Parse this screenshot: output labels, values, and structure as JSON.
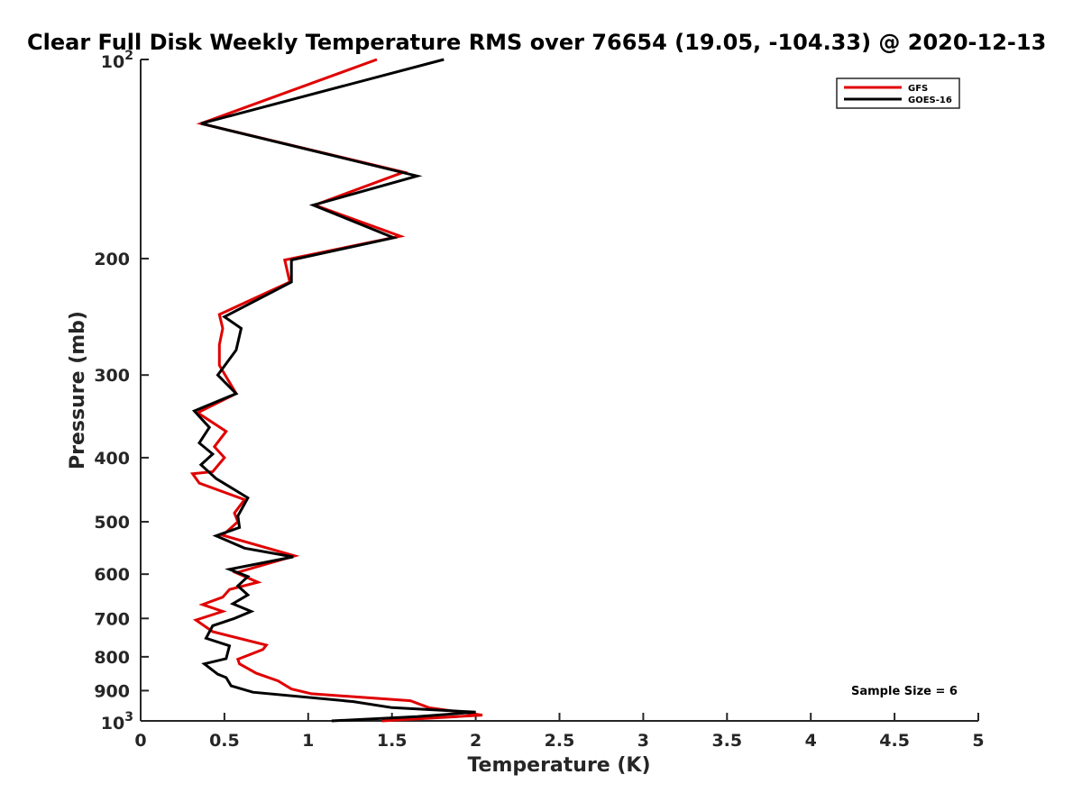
{
  "chart_data": {
    "type": "line",
    "title": "Clear Full Disk Weekly Temperature RMS over 76654 (19.05, -104.33) @ 2020-12-13",
    "xlabel": "Temperature (K)",
    "ylabel": "Pressure (mb)",
    "xlim": [
      0,
      5
    ],
    "ylim": [
      100,
      1000
    ],
    "y_scale": "log",
    "y_reversed": true,
    "grid": false,
    "legend_position": "top-right",
    "x_ticks": [
      "0",
      "0.5",
      "1",
      "1.5",
      "2",
      "2.5",
      "3",
      "3.5",
      "4",
      "4.5",
      "5"
    ],
    "y_ticks": [
      {
        "value": 100,
        "base": "10",
        "exp": "2"
      },
      {
        "value": 200,
        "label": "200"
      },
      {
        "value": 300,
        "label": "300"
      },
      {
        "value": 400,
        "label": "400"
      },
      {
        "value": 500,
        "label": "500"
      },
      {
        "value": 600,
        "label": "600"
      },
      {
        "value": 700,
        "label": "700"
      },
      {
        "value": 800,
        "label": "800"
      },
      {
        "value": 900,
        "label": "900"
      },
      {
        "value": 1000,
        "base": "10",
        "exp": "3"
      }
    ],
    "series": [
      {
        "name": "GFS",
        "color": "#e00000",
        "x": [
          1.41,
          0.36,
          1.57,
          1.04,
          1.55,
          0.86,
          0.89,
          0.47,
          0.49,
          0.47,
          0.47,
          0.57,
          0.34,
          0.51,
          0.44,
          0.5,
          0.43,
          0.31,
          0.35,
          0.62,
          0.56,
          0.58,
          0.49,
          0.92,
          0.57,
          0.7,
          0.53,
          0.49,
          0.37,
          0.49,
          0.33,
          0.43,
          0.75,
          0.73,
          0.58,
          0.59,
          0.69,
          0.82,
          0.9,
          1.02,
          1.61,
          1.72,
          2.04,
          1.89,
          1.44
        ],
        "y": [
          100,
          125,
          148,
          166,
          185,
          201,
          217,
          243,
          255,
          270,
          290,
          320,
          342,
          365,
          385,
          400,
          420,
          423,
          437,
          463,
          485,
          500,
          524,
          563,
          597,
          617,
          633,
          650,
          667,
          683,
          704,
          733,
          768,
          780,
          807,
          820,
          847,
          870,
          895,
          910,
          932,
          955,
          980,
          985,
          1000
        ]
      },
      {
        "name": "GOES-16",
        "color": "#000000",
        "x": [
          1.81,
          0.36,
          1.65,
          1.03,
          1.51,
          0.9,
          0.9,
          0.5,
          0.6,
          0.57,
          0.46,
          0.57,
          0.32,
          0.41,
          0.35,
          0.43,
          0.36,
          0.45,
          0.64,
          0.58,
          0.59,
          0.45,
          0.62,
          0.91,
          0.53,
          0.64,
          0.58,
          0.64,
          0.55,
          0.66,
          0.56,
          0.43,
          0.39,
          0.53,
          0.51,
          0.38,
          0.46,
          0.51,
          0.54,
          0.67,
          1.27,
          1.5,
          2.0,
          1.65,
          1.14
        ],
        "y": [
          100,
          125,
          150,
          166,
          186,
          201,
          217,
          245,
          255,
          275,
          300,
          320,
          340,
          360,
          380,
          395,
          410,
          430,
          460,
          490,
          510,
          525,
          548,
          565,
          590,
          605,
          625,
          645,
          665,
          683,
          700,
          718,
          750,
          770,
          805,
          820,
          850,
          860,
          885,
          905,
          935,
          955,
          970,
          985,
          1000
        ]
      }
    ],
    "annotation": "Sample Size = 6"
  }
}
